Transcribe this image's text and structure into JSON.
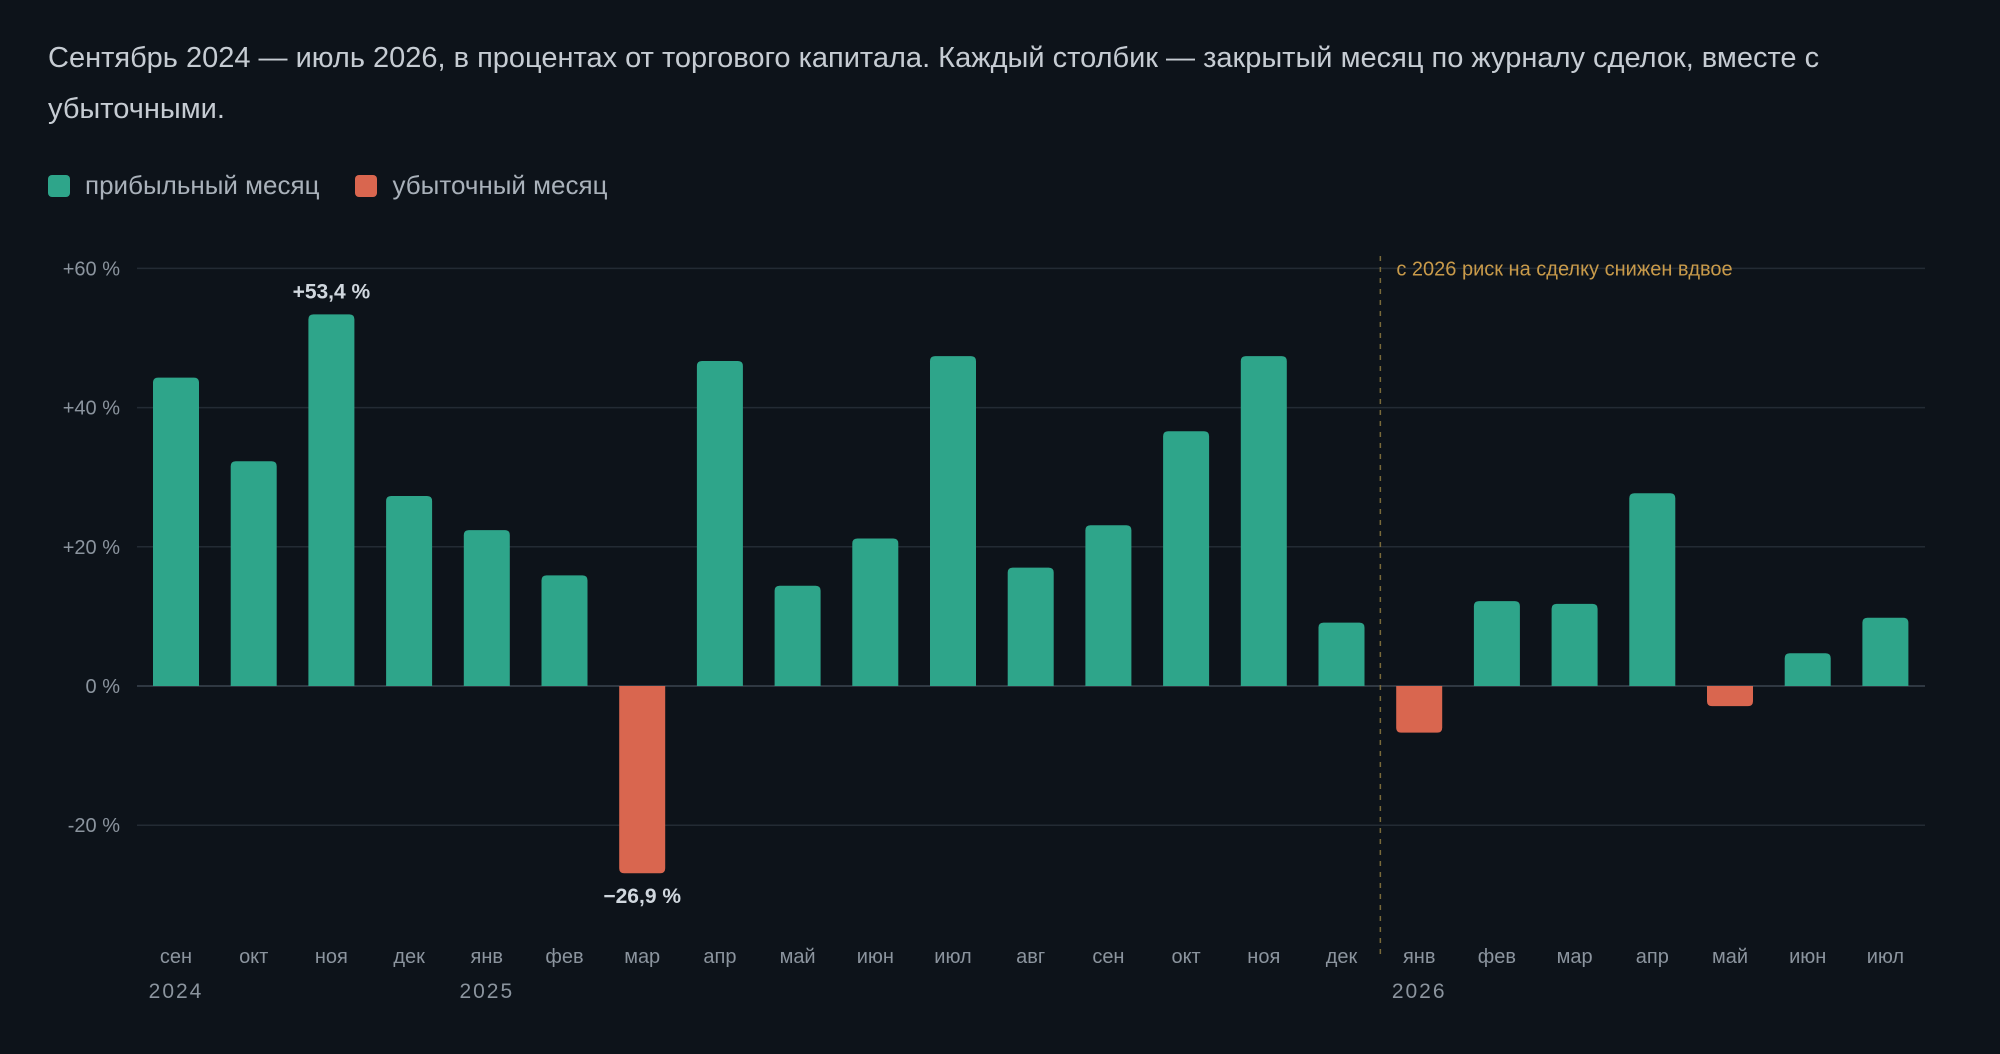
{
  "subtitle": "Сентябрь 2024 — июль 2026, в процентах от торгового капитала. Каждый столбик — закрытый месяц по журналу сделок, вместе с убыточными.",
  "legend": {
    "profit": "прибыльный месяц",
    "loss": "убыточный месяц"
  },
  "colors": {
    "profit": "#2ea58a",
    "loss": "#d9664f",
    "grid": "#232b34",
    "annotation": "#c89a4a",
    "background": "#0d131a"
  },
  "chart_data": {
    "type": "bar",
    "categories": [
      "сен",
      "окт",
      "ноя",
      "дек",
      "янв",
      "фев",
      "мар",
      "апр",
      "май",
      "июн",
      "июл",
      "авг",
      "сен",
      "окт",
      "ноя",
      "дек",
      "янв",
      "фев",
      "мар",
      "апр",
      "май",
      "июн",
      "июл"
    ],
    "values": [
      44.3,
      32.3,
      53.4,
      27.3,
      22.4,
      15.9,
      -26.9,
      46.7,
      14.4,
      21.2,
      47.4,
      17.0,
      23.1,
      36.6,
      47.4,
      9.1,
      -6.7,
      12.2,
      11.8,
      27.7,
      -2.9,
      4.7,
      9.8
    ],
    "years": [
      {
        "label": "2024",
        "start_index": 0
      },
      {
        "label": "2025",
        "start_index": 4
      },
      {
        "label": "2026",
        "start_index": 16
      }
    ],
    "ylim": [
      -35,
      63
    ],
    "yticks": [
      60,
      40,
      20,
      0,
      -20
    ],
    "ytick_labels": [
      "+60 %",
      "+40 %",
      "+20 %",
      "0 %",
      "-20 %"
    ],
    "data_labels": [
      {
        "index": 2,
        "text": "+53,4 %"
      },
      {
        "index": 6,
        "text": "−26,9 %"
      }
    ],
    "annotation": {
      "text": "с 2026 риск на сделку снижен вдвое",
      "between_index": 15.5
    },
    "grid": true,
    "legend_position": "top-left"
  }
}
